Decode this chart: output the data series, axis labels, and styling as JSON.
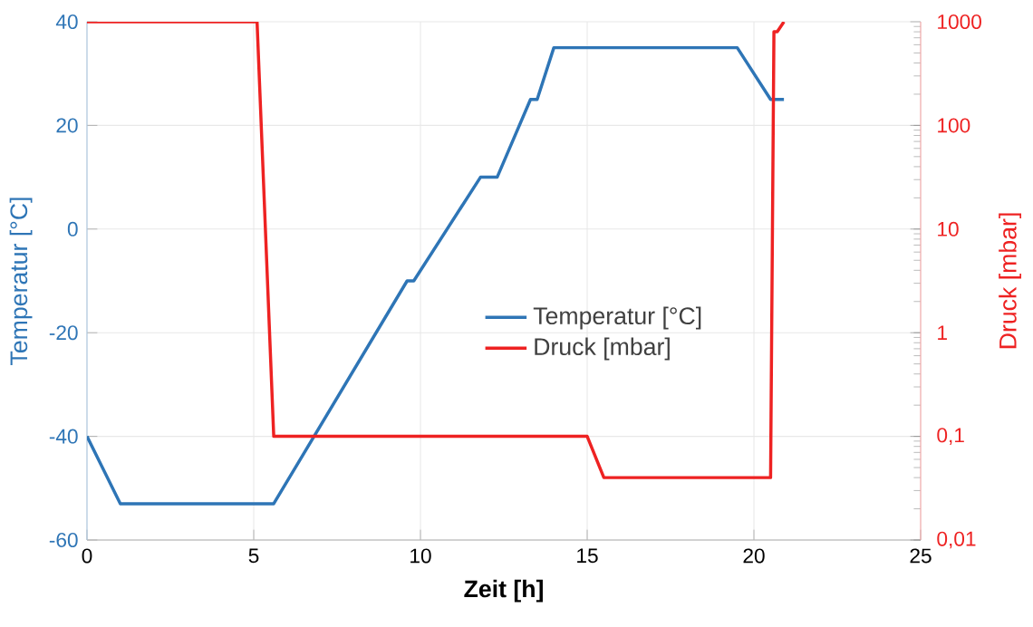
{
  "chart_data": {
    "type": "line",
    "xlabel": "Zeit [h]",
    "ylabel": "Temperatur [°C]",
    "y2label": "Druck  [mbar]",
    "xlim": [
      0,
      25
    ],
    "xticks": [
      0,
      5,
      10,
      15,
      20,
      25
    ],
    "ylim": [
      -60,
      40
    ],
    "yticks": [
      -60,
      -40,
      -20,
      0,
      20,
      40
    ],
    "y2lim": [
      0.01,
      1000
    ],
    "y2ticks": [
      {
        "value": 0.01,
        "label": "0,01"
      },
      {
        "value": 0.1,
        "label": "0,1"
      },
      {
        "value": 1,
        "label": "1"
      },
      {
        "value": 10,
        "label": "10"
      },
      {
        "value": 100,
        "label": "100"
      },
      {
        "value": 1000,
        "label": "1000"
      }
    ],
    "log": "y2",
    "grid": true,
    "legend": "center",
    "marker": "none",
    "line_style": "solid",
    "series": [
      {
        "name": "Temperatur [°C]",
        "color": "#2e75b6",
        "x": [
          0,
          1,
          5.6,
          9.6,
          9.8,
          11.8,
          12.3,
          13.3,
          13.5,
          14,
          19.5,
          20.5,
          20.9
        ],
        "values": [
          -40,
          -53,
          -53,
          -10,
          -10,
          10,
          10,
          25,
          25,
          35,
          35,
          25,
          25
        ]
      },
      {
        "name": "Druck [mbar]",
        "color": "#ee2222",
        "axis": "y2",
        "x": [
          0,
          5.1,
          5.6,
          15,
          15.5,
          20.5,
          20.6,
          20.7,
          20.9
        ],
        "values": [
          1000,
          1000,
          0.1,
          0.1,
          0.04,
          0.04,
          800,
          800,
          1000
        ]
      }
    ]
  }
}
